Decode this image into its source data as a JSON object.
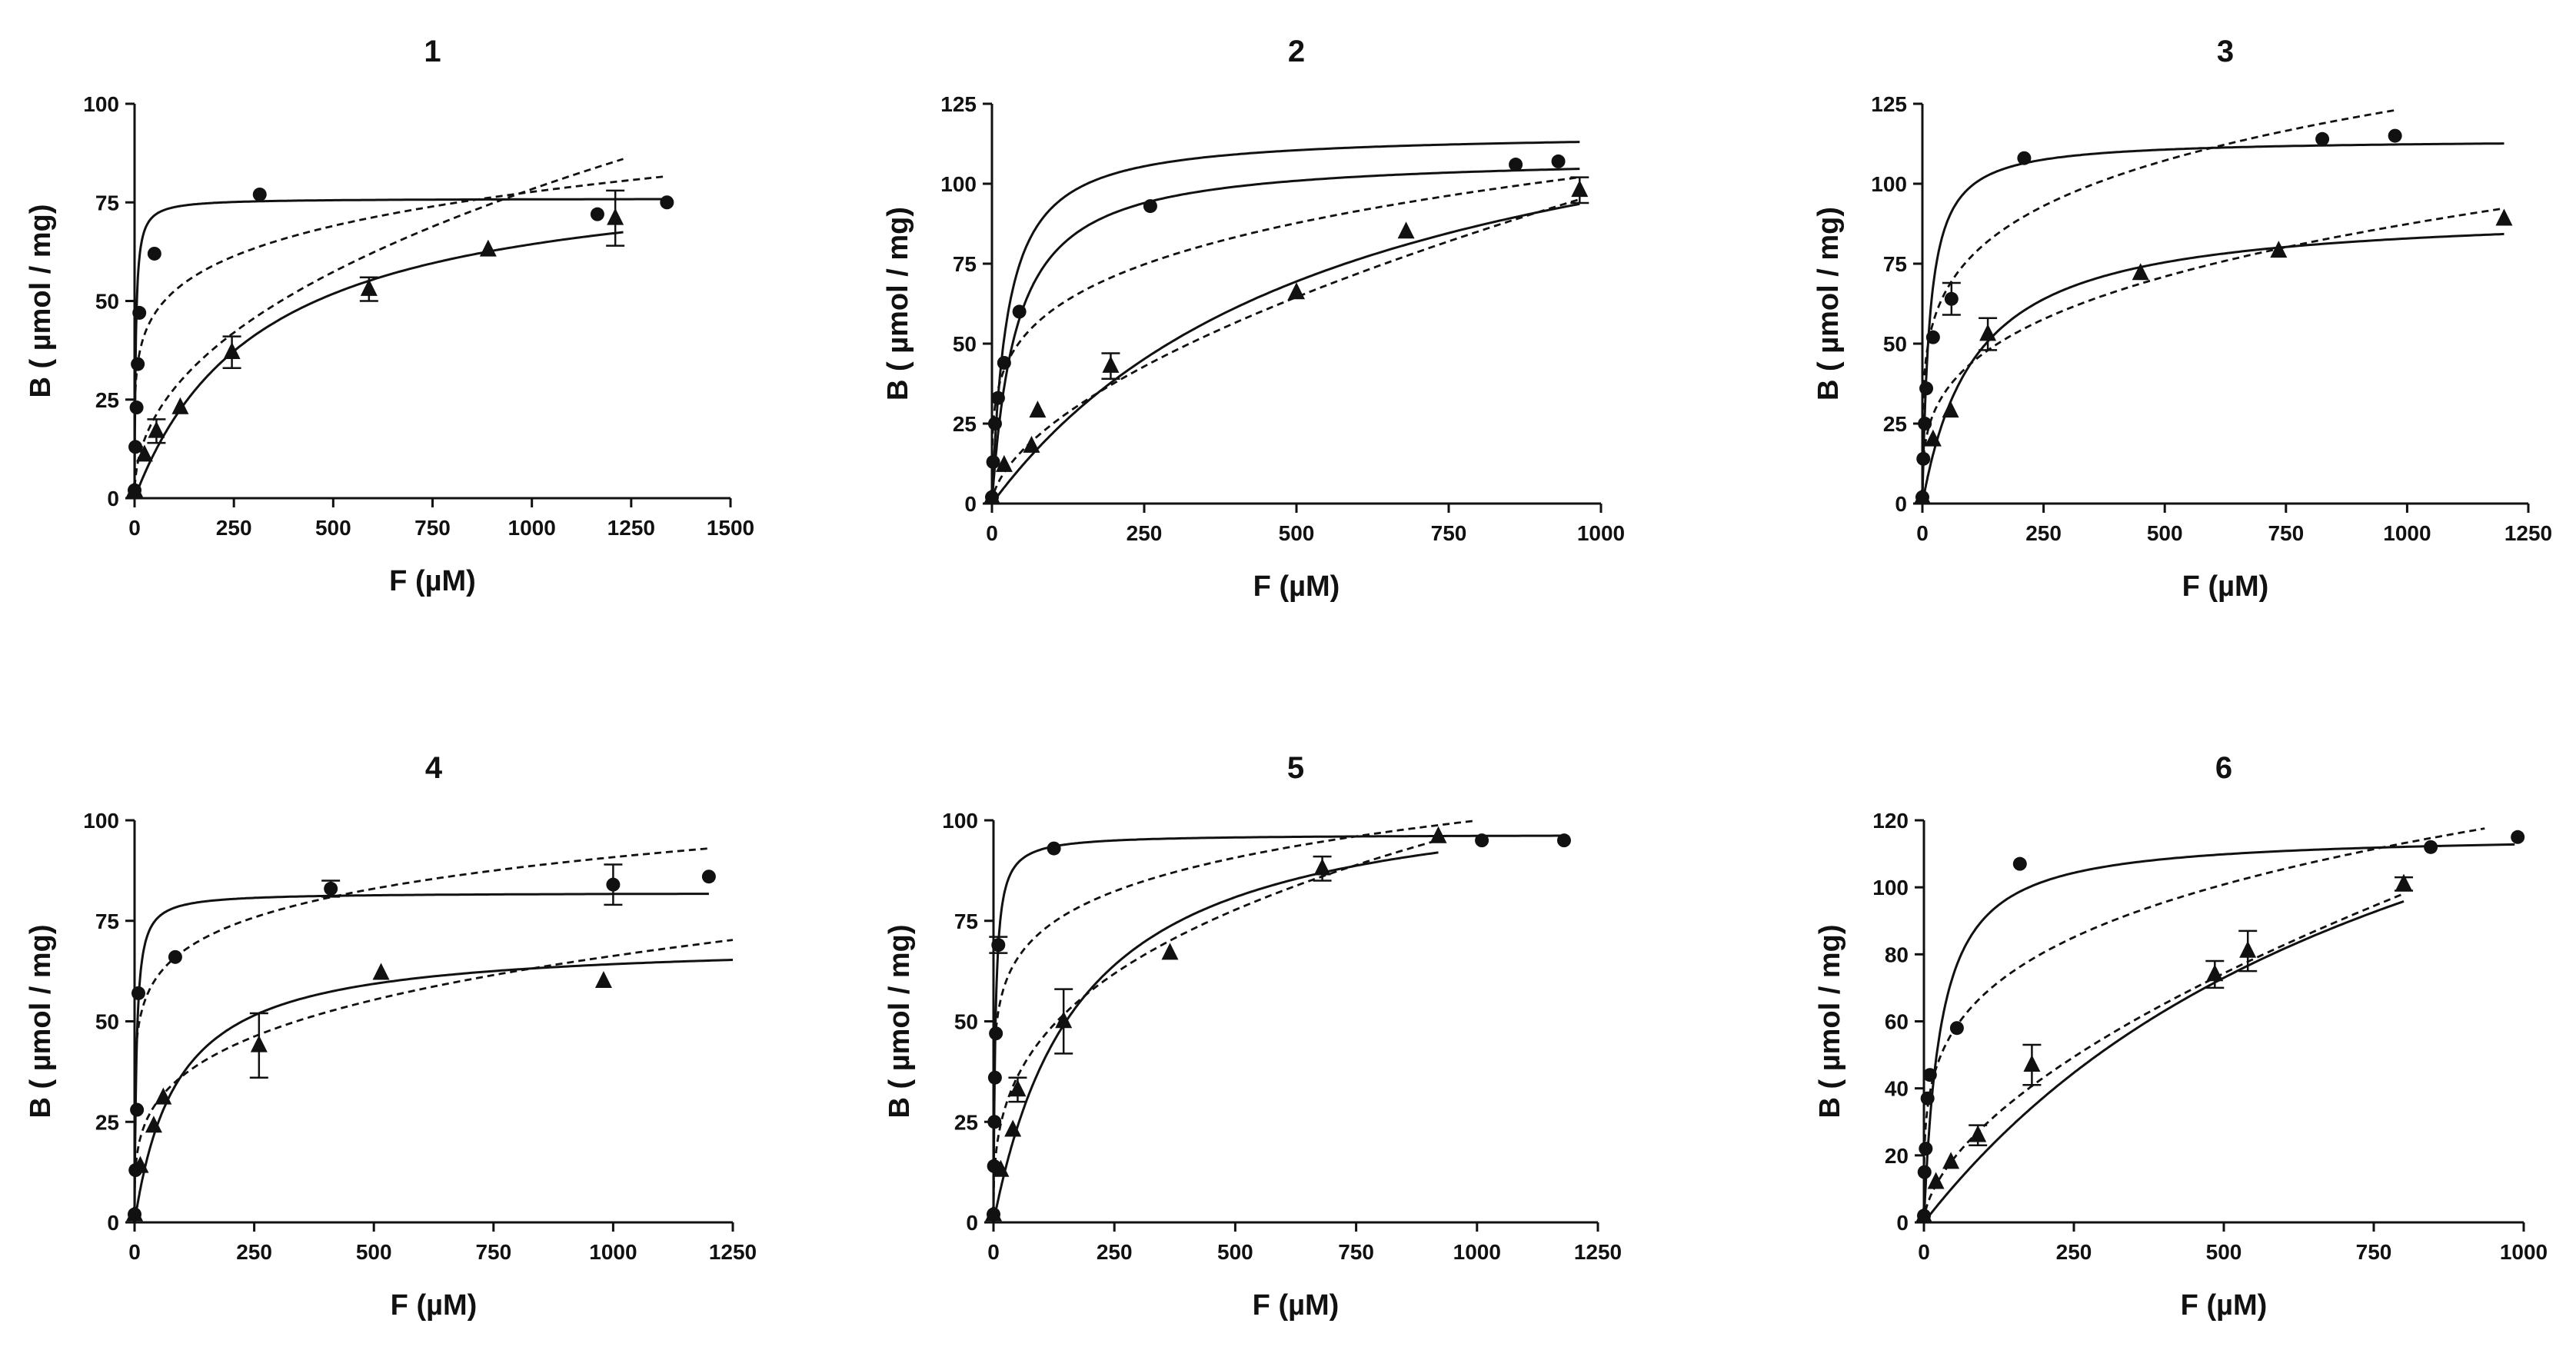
{
  "chart_data": [
    {
      "type": "scatter",
      "title": "1",
      "xlabel": "F (µM)",
      "ylabel": "B ( µmol / mg)",
      "xlim": [
        0,
        1500
      ],
      "ylim": [
        0,
        100
      ],
      "xticks": [
        0,
        250,
        500,
        750,
        1000,
        1250,
        1500
      ],
      "yticks": [
        0,
        25,
        50,
        75,
        100
      ],
      "series": [
        {
          "name": "circles",
          "marker": "circle",
          "x": [
            0,
            2,
            5,
            8,
            12,
            50,
            315,
            1165,
            1340
          ],
          "y": [
            2,
            13,
            23,
            34,
            47,
            62,
            77,
            72,
            75
          ],
          "err": [
            0,
            0,
            0,
            0,
            0,
            0,
            0,
            0,
            0
          ]
        },
        {
          "name": "triangles",
          "marker": "triangle",
          "x": [
            0,
            25,
            55,
            115,
            245,
            590,
            890,
            1210
          ],
          "y": [
            2,
            11,
            17,
            23,
            37,
            53,
            63,
            71
          ],
          "err": [
            0,
            0,
            3,
            0,
            4,
            3,
            0,
            7
          ]
        }
      ],
      "curves": [
        {
          "model": "langmuir",
          "params": [
            76,
            3
          ],
          "xmax": 1340,
          "dash": false
        },
        {
          "model": "freundlich",
          "params": [
            24,
            0.17
          ],
          "xmax": 1340,
          "dash": true
        },
        {
          "model": "langmuir",
          "params": [
            85,
            320
          ],
          "xmax": 1230,
          "dash": false
        },
        {
          "model": "freundlich",
          "params": [
            3.5,
            0.45
          ],
          "xmax": 1230,
          "dash": true
        }
      ]
    },
    {
      "type": "scatter",
      "title": "2",
      "xlabel": "F (µM)",
      "ylabel": "B ( µmol / mg)",
      "xlim": [
        0,
        1000
      ],
      "ylim": [
        0,
        125
      ],
      "xticks": [
        0,
        250,
        500,
        750,
        1000
      ],
      "yticks": [
        0,
        25,
        50,
        75,
        100,
        125
      ],
      "series": [
        {
          "name": "circles",
          "marker": "circle",
          "x": [
            0,
            2,
            5,
            10,
            20,
            45,
            260,
            860,
            930
          ],
          "y": [
            2,
            13,
            25,
            33,
            44,
            60,
            93,
            106,
            107
          ],
          "err": [
            0,
            0,
            0,
            0,
            0,
            0,
            0,
            0,
            0
          ]
        },
        {
          "name": "triangles",
          "marker": "triangle",
          "x": [
            0,
            20,
            65,
            75,
            195,
            500,
            680,
            965
          ],
          "y": [
            2,
            12,
            18,
            29,
            43,
            66,
            85,
            98
          ],
          "err": [
            0,
            0,
            0,
            0,
            4,
            0,
            0,
            4
          ]
        }
      ],
      "curves": [
        {
          "model": "langmuir",
          "params": [
            116,
            25
          ],
          "xmax": 965,
          "dash": false
        },
        {
          "model": "langmuir",
          "params": [
            109,
            40
          ],
          "xmax": 965,
          "dash": false
        },
        {
          "model": "freundlich",
          "params": [
            21,
            0.23
          ],
          "xmax": 965,
          "dash": true
        },
        {
          "model": "langmuir",
          "params": [
            150,
            580
          ],
          "xmax": 965,
          "dash": false
        },
        {
          "model": "freundlich",
          "params": [
            1.65,
            0.59
          ],
          "xmax": 965,
          "dash": true
        }
      ]
    },
    {
      "type": "scatter",
      "title": "3",
      "xlabel": "F (µM)",
      "ylabel": "B ( µmol / mg)",
      "xlim": [
        0,
        1250
      ],
      "ylim": [
        0,
        125
      ],
      "xticks": [
        0,
        250,
        500,
        750,
        1000,
        1250
      ],
      "yticks": [
        0,
        25,
        50,
        75,
        100,
        125
      ],
      "series": [
        {
          "name": "circles",
          "marker": "circle",
          "x": [
            0,
            2,
            5,
            8,
            22,
            60,
            210,
            825,
            975
          ],
          "y": [
            2,
            14,
            25,
            36,
            52,
            64,
            108,
            114,
            115
          ],
          "err": [
            0,
            0,
            0,
            0,
            0,
            5,
            0,
            0,
            0
          ]
        },
        {
          "name": "triangles",
          "marker": "triangle",
          "x": [
            0,
            22,
            58,
            135,
            450,
            735,
            1200
          ],
          "y": [
            2,
            20,
            29,
            53,
            72,
            79,
            89
          ],
          "err": [
            0,
            0,
            0,
            5,
            0,
            0,
            0
          ]
        }
      ],
      "curves": [
        {
          "model": "langmuir",
          "params": [
            114,
            15
          ],
          "xmax": 1200,
          "dash": false
        },
        {
          "model": "freundlich",
          "params": [
            30,
            0.205
          ],
          "xmax": 975,
          "dash": true
        },
        {
          "model": "langmuir",
          "params": [
            92,
            110
          ],
          "xmax": 1200,
          "dash": false
        },
        {
          "model": "freundlich",
          "params": [
            11,
            0.3
          ],
          "xmax": 1200,
          "dash": true
        }
      ]
    },
    {
      "type": "scatter",
      "title": "4",
      "xlabel": "F (µM)",
      "ylabel": "B ( µmol / mg)",
      "xlim": [
        0,
        1250
      ],
      "ylim": [
        0,
        100
      ],
      "xticks": [
        0,
        250,
        500,
        750,
        1000,
        1250
      ],
      "yticks": [
        0,
        25,
        50,
        75,
        100
      ],
      "series": [
        {
          "name": "circles",
          "marker": "circle",
          "x": [
            0,
            2,
            5,
            8,
            85,
            410,
            1000,
            1200
          ],
          "y": [
            2,
            13,
            28,
            57,
            66,
            83,
            84,
            86
          ],
          "err": [
            0,
            0,
            0,
            0,
            0,
            2,
            5,
            0
          ]
        },
        {
          "name": "triangles",
          "marker": "triangle",
          "x": [
            0,
            12,
            40,
            60,
            260,
            515,
            980
          ],
          "y": [
            2,
            14,
            24,
            31,
            44,
            62,
            60
          ],
          "err": [
            0,
            0,
            0,
            0,
            8,
            0,
            0
          ]
        }
      ],
      "curves": [
        {
          "model": "langmuir",
          "params": [
            82,
            4
          ],
          "xmax": 1200,
          "dash": false
        },
        {
          "model": "freundlich",
          "params": [
            37,
            0.13
          ],
          "xmax": 1200,
          "dash": true
        },
        {
          "model": "langmuir",
          "params": [
            70,
            90
          ],
          "xmax": 1250,
          "dash": false
        },
        {
          "model": "freundlich",
          "params": [
            11,
            0.26
          ],
          "xmax": 1250,
          "dash": true
        }
      ]
    },
    {
      "type": "scatter",
      "title": "5",
      "xlabel": "F (µM)",
      "ylabel": "B ( µmol / mg)",
      "xlim": [
        0,
        1250
      ],
      "ylim": [
        0,
        100
      ],
      "xticks": [
        0,
        250,
        500,
        750,
        1000,
        1250
      ],
      "yticks": [
        0,
        25,
        50,
        75,
        100
      ],
      "series": [
        {
          "name": "circles",
          "marker": "circle",
          "x": [
            0,
            1,
            2,
            3,
            5,
            10,
            125,
            1010,
            1180
          ],
          "y": [
            2,
            14,
            25,
            36,
            47,
            69,
            93,
            95,
            95
          ],
          "err": [
            0,
            0,
            0,
            0,
            0,
            2,
            0,
            0,
            0
          ]
        },
        {
          "name": "triangles",
          "marker": "triangle",
          "x": [
            0,
            15,
            40,
            50,
            145,
            365,
            680,
            920
          ],
          "y": [
            2,
            13,
            23,
            33,
            50,
            67,
            88,
            96
          ],
          "err": [
            0,
            0,
            0,
            3,
            8,
            0,
            3,
            0
          ]
        }
      ],
      "curves": [
        {
          "model": "langmuir",
          "params": [
            96.5,
            4
          ],
          "xmax": 1180,
          "dash": false
        },
        {
          "model": "freundlich",
          "params": [
            38,
            0.14
          ],
          "xmax": 1000,
          "dash": true
        },
        {
          "model": "langmuir",
          "params": [
            110,
            180
          ],
          "xmax": 920,
          "dash": false
        },
        {
          "model": "freundlich",
          "params": [
            10,
            0.33
          ],
          "xmax": 920,
          "dash": true
        }
      ]
    },
    {
      "type": "scatter",
      "title": "6",
      "xlabel": "F (µM)",
      "ylabel": "B ( µmol / mg)",
      "xlim": [
        0,
        1000
      ],
      "ylim": [
        0,
        120
      ],
      "xticks": [
        0,
        250,
        500,
        750,
        1000
      ],
      "yticks": [
        0,
        20,
        40,
        60,
        80,
        100,
        120
      ],
      "series": [
        {
          "name": "circles",
          "marker": "circle",
          "x": [
            0,
            1,
            3,
            6,
            10,
            55,
            160,
            845,
            990
          ],
          "y": [
            2,
            15,
            22,
            37,
            44,
            58,
            107,
            112,
            115
          ],
          "err": [
            0,
            0,
            0,
            0,
            0,
            0,
            0,
            0,
            0
          ]
        },
        {
          "name": "triangles",
          "marker": "triangle",
          "x": [
            0,
            20,
            45,
            90,
            180,
            485,
            540,
            800
          ],
          "y": [
            2,
            12,
            18,
            26,
            47,
            74,
            81,
            101
          ],
          "err": [
            0,
            0,
            0,
            3,
            6,
            4,
            6,
            2
          ]
        }
      ],
      "curves": [
        {
          "model": "langmuir",
          "params": [
            116,
            28
          ],
          "xmax": 985,
          "dash": false
        },
        {
          "model": "freundlich",
          "params": [
            22,
            0.245
          ],
          "xmax": 935,
          "dash": true
        },
        {
          "model": "langmuir",
          "params": [
            200,
            870
          ],
          "xmax": 800,
          "dash": false
        },
        {
          "model": "freundlich",
          "params": [
            1.9,
            0.59
          ],
          "xmax": 800,
          "dash": true
        }
      ]
    }
  ]
}
